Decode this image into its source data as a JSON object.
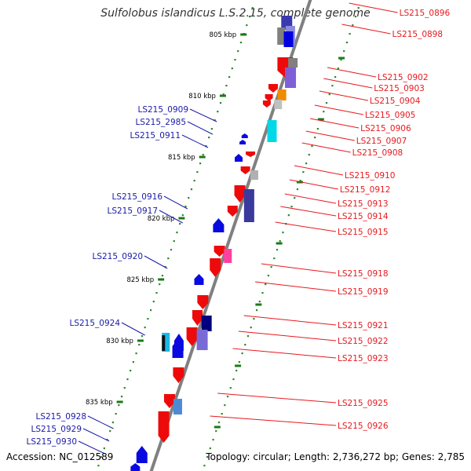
{
  "title": "Sulfolobus islandicus L.S.2.15, complete genome",
  "footer": {
    "accession": "Accession: NC_012589",
    "stats": "Topology: circular; Length: 2,736,272 bp; Genes: 2,785"
  },
  "colors": {
    "right_label": "#e8191e",
    "left_label": "#1a1aa8",
    "backbone": "#808080",
    "dots": "#2a8a2a"
  },
  "ticks": [
    "805 kbp",
    "810 kbp",
    "815 kbp",
    "820 kbp",
    "825 kbp",
    "830 kbp",
    "835 kbp"
  ],
  "right_labels": [
    "LS215_0896",
    "LS215_0898",
    "LS215_0902",
    "LS215_0903",
    "LS215_0904",
    "LS215_0905",
    "LS215_0906",
    "LS215_0907",
    "LS215_0908",
    "LS215_0910",
    "LS215_0912",
    "LS215_0913",
    "LS215_0914",
    "LS215_0915",
    "LS215_0918",
    "LS215_0919",
    "LS215_0921",
    "LS215_0922",
    "LS215_0923",
    "LS215_0925",
    "LS215_0926"
  ],
  "left_labels": [
    "LS215_0909",
    "LS215_2985",
    "LS215_0911",
    "LS215_0916",
    "LS215_0917",
    "LS215_0920",
    "LS215_0924",
    "LS215_0928",
    "LS215_0929",
    "LS215_0930"
  ]
}
